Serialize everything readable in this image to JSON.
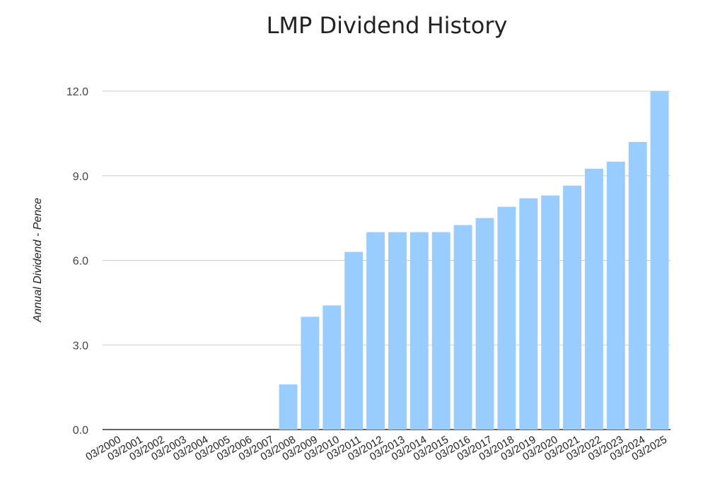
{
  "chart_data": {
    "type": "bar",
    "title": "LMP Dividend History",
    "xlabel": "",
    "ylabel": "Annual Dividend - Pence",
    "ylim": [
      0,
      12
    ],
    "yticks": [
      "0.0",
      "3.0",
      "6.0",
      "9.0",
      "12.0"
    ],
    "grid": true,
    "bar_color": "#99ccff",
    "categories": [
      "03/2000",
      "03/2001",
      "03/2002",
      "03/2003",
      "03/2004",
      "03/2005",
      "03/2006",
      "03/2007",
      "03/2008",
      "03/2009",
      "03/2010",
      "03/2011",
      "03/2012",
      "03/2013",
      "03/2014",
      "03/2015",
      "03/2016",
      "03/2017",
      "03/2018",
      "03/2019",
      "03/2020",
      "03/2021",
      "03/2022",
      "03/2023",
      "03/2024",
      "03/2025"
    ],
    "values": [
      0,
      0,
      0,
      0,
      0,
      0,
      0,
      0,
      1.6,
      4.0,
      4.4,
      6.3,
      7.0,
      7.0,
      7.0,
      7.0,
      7.25,
      7.5,
      7.9,
      8.2,
      8.3,
      8.65,
      9.25,
      9.5,
      10.2,
      12.0
    ]
  }
}
